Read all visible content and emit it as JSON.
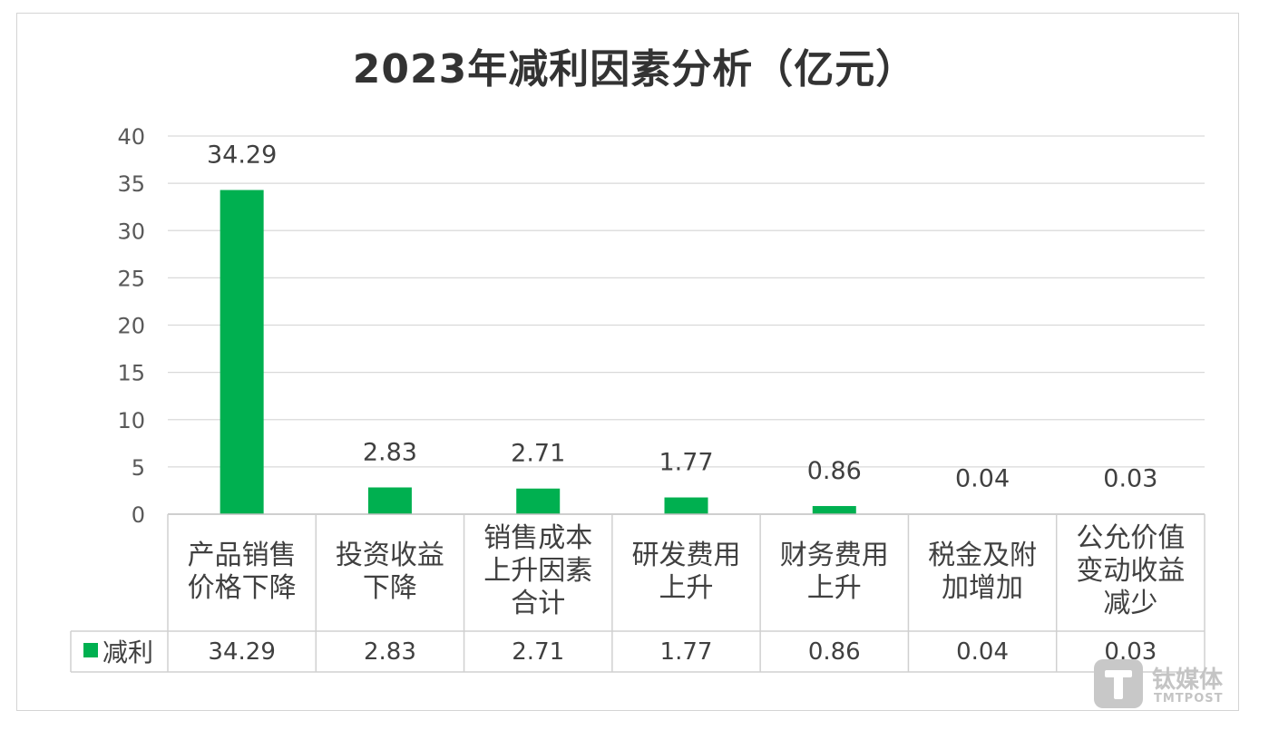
{
  "chart_data": {
    "type": "bar",
    "title": "2023年减利因素分析（亿元）",
    "categories": [
      [
        "产品销售",
        "价格下降"
      ],
      [
        "投资收益",
        "下降"
      ],
      [
        "销售成本",
        "上升因素",
        "合计"
      ],
      [
        "研发费用",
        "上升"
      ],
      [
        "财务费用",
        "上升"
      ],
      [
        "税金及附",
        "加增加"
      ],
      [
        "公允价值",
        "变动收益",
        "减少"
      ]
    ],
    "series": [
      {
        "name": "减利",
        "values": [
          34.29,
          2.83,
          2.71,
          1.77,
          0.86,
          0.04,
          0.03
        ],
        "color": "#00b050"
      }
    ],
    "data_labels": [
      "34.29",
      "2.83",
      "2.71",
      "1.77",
      "0.86",
      "0.04",
      "0.03"
    ],
    "table_values": [
      "34.29",
      "2.83",
      "2.71",
      "1.77",
      "0.86",
      "0.04",
      "0.03"
    ],
    "ylim": [
      0,
      40
    ],
    "yticks": [
      0,
      5,
      10,
      15,
      20,
      25,
      30,
      35,
      40
    ],
    "grid": true,
    "legend": "data-table",
    "data_table": true
  },
  "watermark": {
    "brand_cn": "钛媒体",
    "brand_en": "TMTPOST",
    "logo_icon": "tmtpost-t-logo-icon"
  }
}
